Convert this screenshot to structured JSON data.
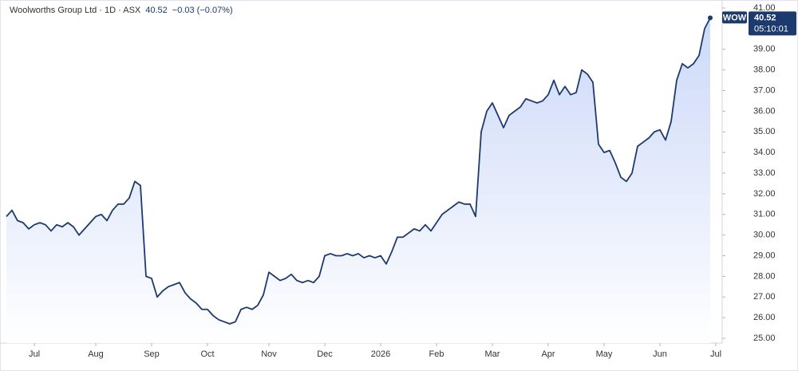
{
  "header": {
    "title": "Woolworths Group Ltd · 1D · ASX",
    "price": "40.52",
    "change": "−0.03 (−0.07%)"
  },
  "last_label": {
    "symbol": "WOW",
    "time": "05:10:01"
  },
  "chart_data": {
    "type": "area",
    "color": "#1c3a6e",
    "fill": "#c7d5f7",
    "ylim": [
      25,
      41
    ],
    "yticks": [
      {
        "value": 25,
        "label": "25.00"
      },
      {
        "value": 26,
        "label": "26.00"
      },
      {
        "value": 27,
        "label": "27.00"
      },
      {
        "value": 28,
        "label": "28.00"
      },
      {
        "value": 29,
        "label": "29.00"
      },
      {
        "value": 30,
        "label": "30.00"
      },
      {
        "value": 31,
        "label": "31.00"
      },
      {
        "value": 32,
        "label": "32.00"
      },
      {
        "value": 33,
        "label": "33.00"
      },
      {
        "value": 34,
        "label": "34.00"
      },
      {
        "value": 35,
        "label": "35.00"
      },
      {
        "value": 36,
        "label": "36.00"
      },
      {
        "value": 37,
        "label": "37.00"
      },
      {
        "value": 38,
        "label": "38.00"
      },
      {
        "value": 39,
        "label": "39.00"
      },
      {
        "value": 41,
        "label": "41.00"
      }
    ],
    "categories": [
      null,
      null,
      null,
      null,
      null,
      "Jul",
      null,
      null,
      null,
      null,
      null,
      null,
      null,
      null,
      null,
      null,
      "Aug",
      null,
      null,
      null,
      null,
      null,
      null,
      null,
      null,
      null,
      "Sep",
      null,
      null,
      null,
      null,
      null,
      null,
      null,
      null,
      null,
      "Oct",
      null,
      null,
      null,
      null,
      null,
      null,
      null,
      null,
      null,
      null,
      "Nov",
      null,
      null,
      null,
      null,
      null,
      null,
      null,
      null,
      null,
      "Dec",
      null,
      null,
      null,
      null,
      null,
      null,
      null,
      null,
      null,
      "2026",
      null,
      null,
      null,
      null,
      null,
      null,
      null,
      null,
      null,
      "Feb",
      null,
      null,
      null,
      null,
      null,
      null,
      null,
      null,
      null,
      "Mar",
      null,
      null,
      null,
      null,
      null,
      null,
      null,
      null,
      null,
      "Apr",
      null,
      null,
      null,
      null,
      null,
      null,
      null,
      null,
      null,
      "May",
      null,
      null,
      null,
      null,
      null,
      null,
      null,
      null,
      null,
      "Jun",
      null,
      null,
      null,
      null,
      null,
      null,
      null,
      null,
      null,
      "Jul"
    ],
    "values": [
      30.9,
      31.2,
      30.7,
      30.6,
      30.3,
      30.5,
      30.6,
      30.5,
      30.2,
      30.5,
      30.4,
      30.6,
      30.4,
      30.0,
      30.3,
      30.6,
      30.9,
      31.0,
      30.7,
      31.2,
      31.5,
      31.5,
      31.8,
      32.6,
      32.4,
      28.0,
      27.9,
      27.0,
      27.3,
      27.5,
      27.6,
      27.7,
      27.2,
      26.9,
      26.7,
      26.4,
      26.4,
      26.1,
      25.9,
      25.8,
      25.7,
      25.8,
      26.4,
      26.5,
      26.4,
      26.6,
      27.1,
      28.2,
      28.0,
      27.8,
      27.9,
      28.1,
      27.8,
      27.7,
      27.8,
      27.7,
      28.0,
      29.0,
      29.1,
      29.0,
      29.0,
      29.1,
      29.0,
      29.1,
      28.9,
      29.0,
      28.9,
      29.0,
      28.6,
      29.2,
      29.9,
      29.9,
      30.1,
      30.3,
      30.2,
      30.5,
      30.2,
      30.6,
      31.0,
      31.2,
      31.4,
      31.6,
      31.5,
      31.5,
      30.9,
      35.0,
      36.0,
      36.4,
      35.8,
      35.2,
      35.8,
      36.0,
      36.2,
      36.6,
      36.5,
      36.4,
      36.5,
      36.8,
      37.5,
      36.8,
      37.2,
      36.8,
      36.9,
      38.0,
      37.8,
      37.4,
      34.4,
      34.0,
      34.1,
      33.5,
      32.8,
      32.6,
      33.0,
      34.3,
      34.5,
      34.7,
      35.0,
      35.1,
      34.6,
      35.5,
      37.5,
      38.3,
      38.1,
      38.3,
      38.7,
      40.0,
      40.52,
      null
    ]
  }
}
